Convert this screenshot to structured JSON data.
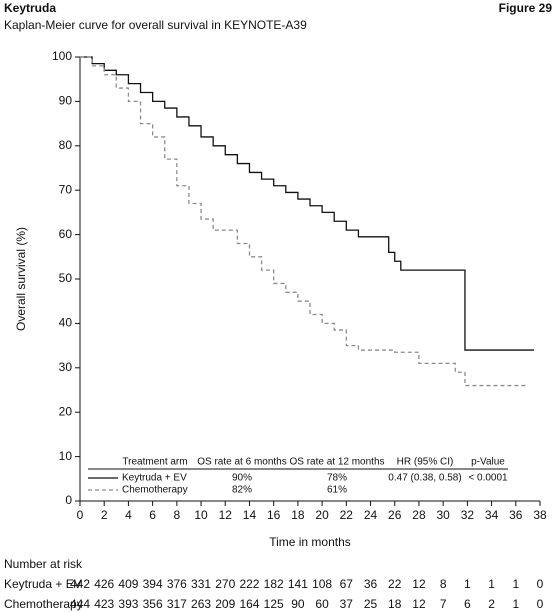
{
  "chart_data": {
    "type": "line",
    "step": true,
    "header": "Keytruda",
    "figure_label": "Figure 29",
    "title": "Kaplan-Meier curve for overall survival in KEYNOTE-A39",
    "x_label": "Time in months",
    "y_label": "Overall survival (%)",
    "xlim": [
      0,
      38
    ],
    "ylim": [
      0,
      100
    ],
    "xticks": [
      0,
      2,
      4,
      6,
      8,
      10,
      12,
      14,
      16,
      18,
      20,
      22,
      24,
      26,
      28,
      30,
      32,
      34,
      36,
      38
    ],
    "yticks": [
      0,
      10,
      20,
      30,
      40,
      50,
      60,
      70,
      80,
      90,
      100
    ],
    "series": [
      {
        "name": "Keytruda + EV",
        "color": "#111111",
        "dashed": false,
        "x": [
          0,
          1,
          2,
          3,
          4,
          5,
          6,
          7,
          8,
          9,
          10,
          11,
          12,
          13,
          14,
          15,
          16,
          17,
          18,
          19,
          20,
          21,
          22,
          23,
          25.5,
          26,
          26.5,
          31.8,
          37.5
        ],
        "values": [
          100,
          98.5,
          97,
          96,
          94,
          92,
          90,
          88.5,
          86.5,
          84.5,
          82,
          80,
          78,
          76,
          74,
          72.5,
          71,
          69.5,
          68,
          66.5,
          65,
          63,
          61,
          59.5,
          56,
          54,
          52,
          34,
          34
        ]
      },
      {
        "name": "Chemotherapy",
        "color": "#8c8c8c",
        "dashed": true,
        "x": [
          0,
          1,
          2,
          3,
          4,
          5,
          6,
          7,
          8,
          9,
          10,
          11,
          12,
          13,
          14,
          15,
          16,
          17,
          18,
          19,
          20,
          21,
          22,
          23,
          26,
          28,
          31,
          31.8,
          37
        ],
        "values": [
          100,
          98,
          96,
          93,
          90,
          85,
          82,
          77,
          71,
          67,
          63.5,
          61,
          61,
          58,
          55,
          52,
          49,
          47,
          45,
          42,
          40,
          38.5,
          35,
          34,
          33.5,
          31,
          29,
          26,
          26
        ]
      }
    ],
    "summary_table": {
      "headers": [
        "Treatment arm",
        "OS rate at 6 months",
        "OS rate at 12 months",
        "HR (95% CI)",
        "p-Value"
      ],
      "rows": [
        [
          "Keytruda + EV",
          "90%",
          "78%",
          "0.47 (0.38, 0.58)",
          "< 0.0001"
        ],
        [
          "Chemotherapy",
          "82%",
          "61%"
        ]
      ]
    },
    "risk_table": {
      "title": "Number at risk",
      "rows": [
        {
          "name": "Keytruda + EV",
          "values": [
            442,
            426,
            409,
            394,
            376,
            331,
            270,
            222,
            182,
            141,
            108,
            67,
            36,
            22,
            12,
            8,
            1,
            1,
            1,
            0
          ]
        },
        {
          "name": "Chemotherapy",
          "values": [
            444,
            423,
            393,
            356,
            317,
            263,
            209,
            164,
            125,
            90,
            60,
            37,
            25,
            18,
            12,
            7,
            6,
            2,
            1,
            0
          ]
        }
      ]
    }
  }
}
